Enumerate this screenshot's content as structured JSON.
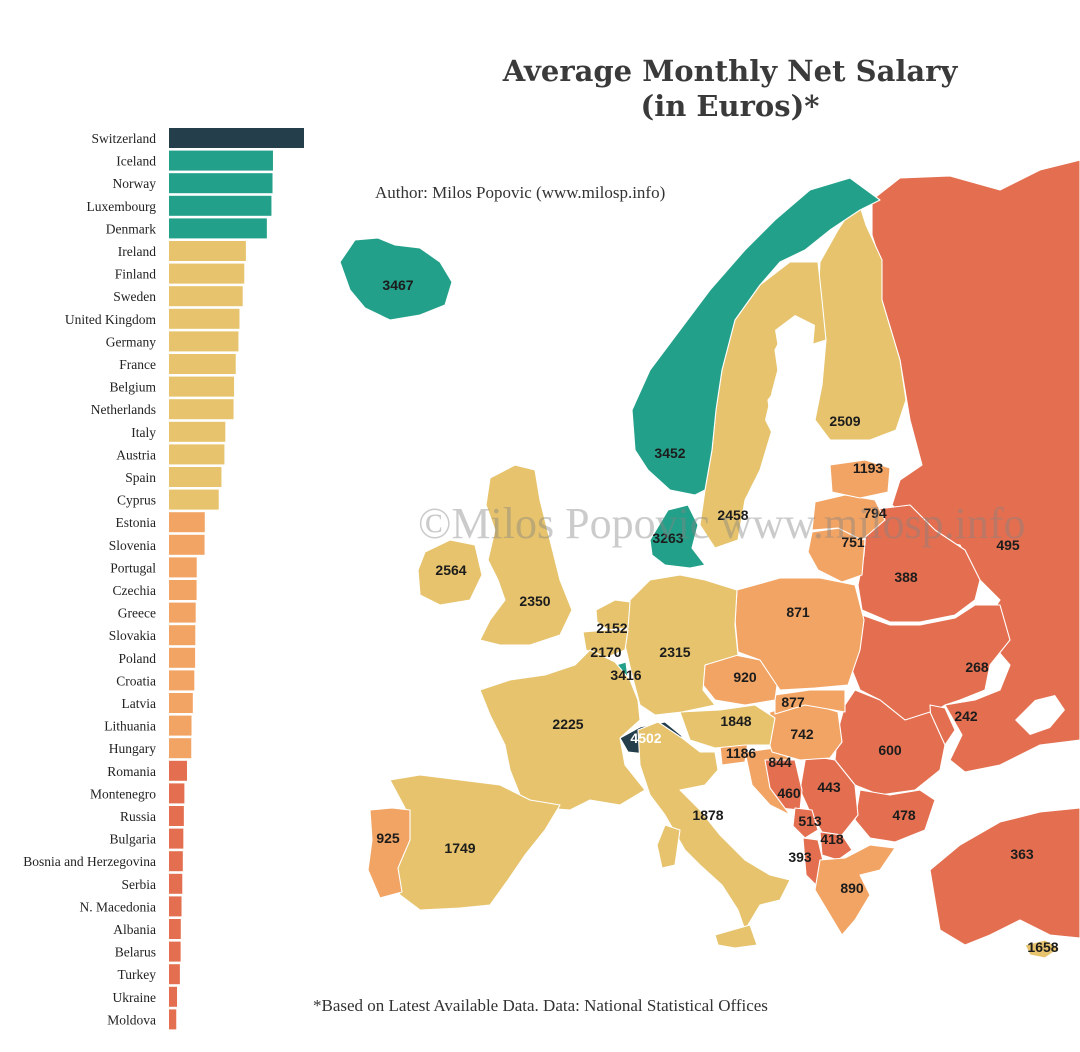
{
  "title_line1": "Average Monthly Net Salary",
  "title_line2": "(in Euros)*",
  "author": "Author: Milos Popovic (www.milosp.info)",
  "footnote": "*Based on Latest Available Data. Data:  National Statistical Offices",
  "watermark": "©Milos Popovic www.milosp.info",
  "colors": {
    "top": "#243e4c",
    "high": "#23a089",
    "mid": "#e6c36c",
    "low": "#f2a464",
    "lowest": "#e36f50",
    "sea": "#ffffff",
    "border": "#ffffff"
  },
  "chart_data": [
    {
      "type": "bar",
      "orientation": "horizontal",
      "categories": [
        "Switzerland",
        "Iceland",
        "Norway",
        "Luxembourg",
        "Denmark",
        "Ireland",
        "Finland",
        "Sweden",
        "United Kingdom",
        "Germany",
        "France",
        "Belgium",
        "Netherlands",
        "Italy",
        "Austria",
        "Spain",
        "Cyprus",
        "Estonia",
        "Slovenia",
        "Portugal",
        "Czechia",
        "Greece",
        "Slovakia",
        "Poland",
        "Croatia",
        "Latvia",
        "Lithuania",
        "Hungary",
        "Romania",
        "Montenegro",
        "Russia",
        "Bulgaria",
        "Bosnia and Herzegovina",
        "Serbia",
        "N. Macedonia",
        "Albania",
        "Belarus",
        "Turkey",
        "Ukraine",
        "Moldova"
      ],
      "values": [
        4502,
        3467,
        3452,
        3416,
        3263,
        2564,
        2509,
        2458,
        2350,
        2315,
        2225,
        2170,
        2152,
        1878,
        1848,
        1749,
        1658,
        1193,
        1186,
        925,
        920,
        890,
        877,
        871,
        844,
        794,
        751,
        742,
        600,
        513,
        495,
        478,
        460,
        443,
        418,
        393,
        388,
        363,
        268,
        242
      ],
      "tiers": [
        "top",
        "high",
        "high",
        "high",
        "high",
        "mid",
        "mid",
        "mid",
        "mid",
        "mid",
        "mid",
        "mid",
        "mid",
        "mid",
        "mid",
        "mid",
        "mid",
        "low",
        "low",
        "low",
        "low",
        "low",
        "low",
        "low",
        "low",
        "low",
        "low",
        "low",
        "lowest",
        "lowest",
        "lowest",
        "lowest",
        "lowest",
        "lowest",
        "lowest",
        "lowest",
        "lowest",
        "lowest",
        "lowest",
        "lowest"
      ],
      "xlim": [
        0,
        4502
      ]
    },
    {
      "type": "choropleth-map",
      "labels": [
        {
          "country": "Iceland",
          "value": 3467,
          "tier": "high"
        },
        {
          "country": "Norway",
          "value": 3452,
          "tier": "high"
        },
        {
          "country": "Sweden",
          "value": 2458,
          "tier": "mid"
        },
        {
          "country": "Finland",
          "value": 2509,
          "tier": "mid"
        },
        {
          "country": "Denmark",
          "value": 3263,
          "tier": "high"
        },
        {
          "country": "Ireland",
          "value": 2564,
          "tier": "mid"
        },
        {
          "country": "United Kingdom",
          "value": 2350,
          "tier": "mid"
        },
        {
          "country": "Netherlands",
          "value": 2152,
          "tier": "mid"
        },
        {
          "country": "Belgium",
          "value": 2170,
          "tier": "mid"
        },
        {
          "country": "Luxembourg",
          "value": 3416,
          "tier": "high"
        },
        {
          "country": "Germany",
          "value": 2315,
          "tier": "mid"
        },
        {
          "country": "France",
          "value": 2225,
          "tier": "mid"
        },
        {
          "country": "Switzerland",
          "value": 4502,
          "tier": "top"
        },
        {
          "country": "Austria",
          "value": 1848,
          "tier": "mid"
        },
        {
          "country": "Italy",
          "value": 1878,
          "tier": "mid"
        },
        {
          "country": "Spain",
          "value": 1749,
          "tier": "mid"
        },
        {
          "country": "Portugal",
          "value": 925,
          "tier": "low"
        },
        {
          "country": "Czechia",
          "value": 920,
          "tier": "low"
        },
        {
          "country": "Poland",
          "value": 871,
          "tier": "low"
        },
        {
          "country": "Slovakia",
          "value": 877,
          "tier": "low"
        },
        {
          "country": "Hungary",
          "value": 742,
          "tier": "low"
        },
        {
          "country": "Slovenia",
          "value": 1186,
          "tier": "low"
        },
        {
          "country": "Croatia",
          "value": 844,
          "tier": "low"
        },
        {
          "country": "Bosnia and Herzegovina",
          "value": 460,
          "tier": "lowest"
        },
        {
          "country": "Serbia",
          "value": 443,
          "tier": "lowest"
        },
        {
          "country": "Montenegro",
          "value": 513,
          "tier": "lowest"
        },
        {
          "country": "Albania",
          "value": 393,
          "tier": "lowest"
        },
        {
          "country": "N. Macedonia",
          "value": 418,
          "tier": "lowest"
        },
        {
          "country": "Bulgaria",
          "value": 478,
          "tier": "lowest"
        },
        {
          "country": "Romania",
          "value": 600,
          "tier": "lowest"
        },
        {
          "country": "Moldova",
          "value": 242,
          "tier": "lowest"
        },
        {
          "country": "Ukraine",
          "value": 268,
          "tier": "lowest"
        },
        {
          "country": "Belarus",
          "value": 388,
          "tier": "lowest"
        },
        {
          "country": "Russia",
          "value": 495,
          "tier": "lowest"
        },
        {
          "country": "Estonia",
          "value": 1193,
          "tier": "low"
        },
        {
          "country": "Latvia",
          "value": 794,
          "tier": "low"
        },
        {
          "country": "Lithuania",
          "value": 751,
          "tier": "low"
        },
        {
          "country": "Greece",
          "value": 890,
          "tier": "low"
        },
        {
          "country": "Turkey",
          "value": 363,
          "tier": "lowest"
        },
        {
          "country": "Cyprus",
          "value": 1658,
          "tier": "mid"
        }
      ]
    }
  ]
}
